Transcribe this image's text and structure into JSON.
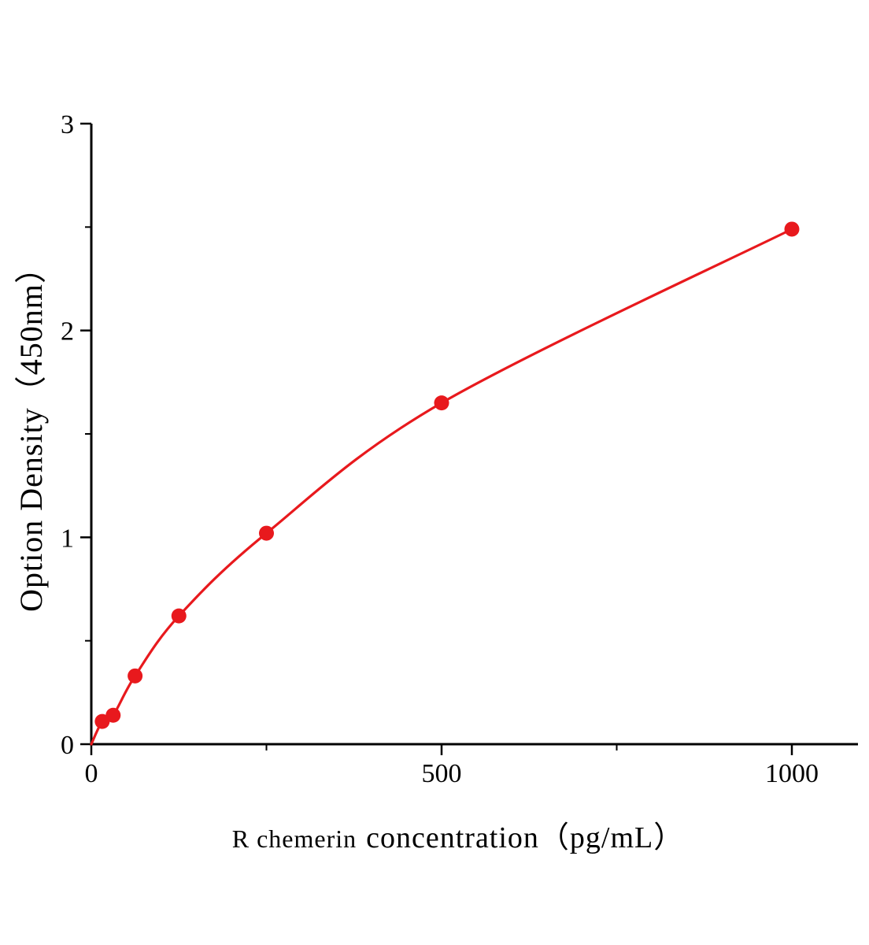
{
  "page": {
    "background_color": "#ffffff"
  },
  "chart_data": {
    "type": "scatter",
    "title": "",
    "xlabel_prefix": "R chemerin",
    "xlabel_suffix": "concentration（pg/mL）",
    "ylabel": "Option Density（450nm）",
    "x": [
      15.6,
      31.2,
      62.5,
      125,
      250,
      500,
      1000
    ],
    "y": [
      0.11,
      0.14,
      0.33,
      0.62,
      1.02,
      1.65,
      2.49
    ],
    "curve_start": {
      "x": 0,
      "y": 0.0
    },
    "x_ticks": [
      0,
      500,
      1000
    ],
    "x_minor_ticks": [
      250,
      750
    ],
    "y_ticks": [
      0,
      1,
      2,
      3
    ],
    "y_minor_ticks": [
      0.5,
      1.5,
      2.5
    ],
    "xlim": [
      0,
      1095
    ],
    "ylim": [
      0,
      3
    ],
    "grid": false,
    "legend": "none",
    "line_color": "#e8191d",
    "marker_color": "#e8191d",
    "axis_color": "#000000"
  }
}
